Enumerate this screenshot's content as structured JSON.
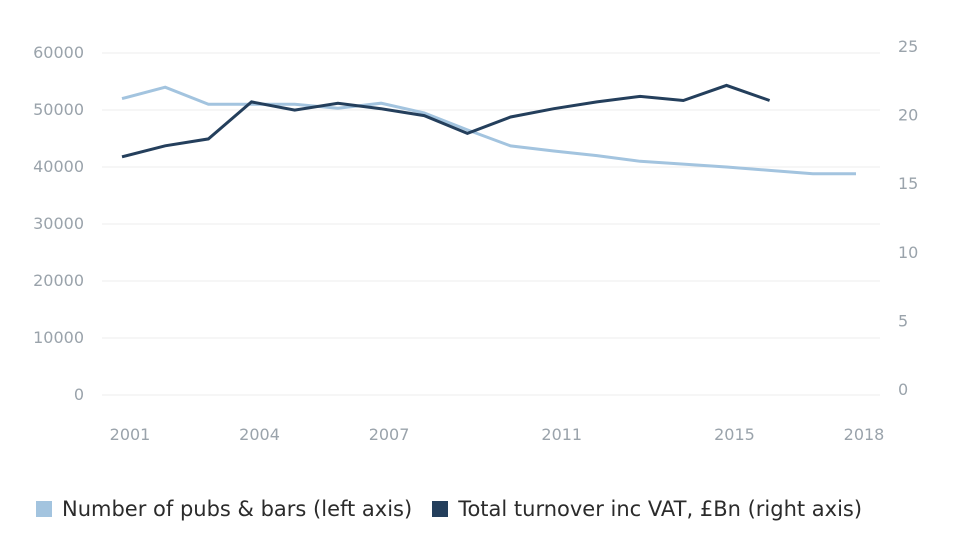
{
  "chart_data": {
    "type": "line",
    "title": "",
    "x": [
      2001,
      2002,
      2003,
      2004,
      2005,
      2006,
      2007,
      2008,
      2009,
      2010,
      2011,
      2012,
      2013,
      2014,
      2015,
      2016,
      2017,
      2018
    ],
    "x_ticks": [
      "2001",
      "2004",
      "2007",
      "2011",
      "2015",
      "2018"
    ],
    "left_axis": {
      "ylim": [
        0,
        60000
      ],
      "ticks": [
        "0",
        "10000",
        "20000",
        "30000",
        "40000",
        "50000",
        "60000"
      ]
    },
    "right_axis": {
      "ylim": [
        0,
        25
      ],
      "ticks": [
        "0",
        "5",
        "10",
        "15",
        "20",
        "25"
      ]
    },
    "grid": true,
    "legend_position": "bottom-left",
    "series": [
      {
        "name": "Number of pubs & bars (left axis)",
        "axis": "left",
        "color": "#a3c4df",
        "values": [
          52000,
          54000,
          51000,
          51000,
          51000,
          50300,
          51200,
          49500,
          46500,
          43700,
          42800,
          42000,
          41000,
          40500,
          40000,
          39400,
          38800,
          38800
        ]
      },
      {
        "name": "Total turnover inc VAT, £Bn (right axis)",
        "axis": "right",
        "color": "#243f5c",
        "values": [
          17.0,
          17.8,
          18.3,
          21.0,
          20.4,
          20.9,
          20.5,
          20.0,
          18.7,
          19.9,
          20.5,
          21.0,
          21.4,
          21.1,
          22.2,
          21.1,
          null,
          null
        ]
      }
    ]
  }
}
